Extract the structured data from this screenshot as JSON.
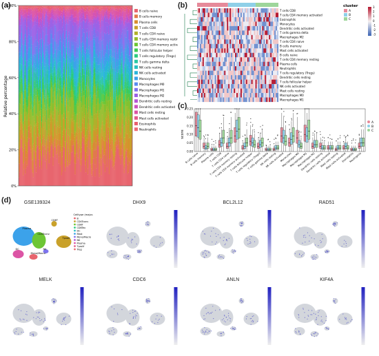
{
  "panels": {
    "a": {
      "letter": "(a)",
      "ylabel": "Relative percentage",
      "yticks": [
        "0%",
        "20%",
        "40%",
        "60%",
        "80%",
        "100%"
      ],
      "legend": [
        {
          "label": "B cells naive",
          "color": "#e8656e"
        },
        {
          "label": "B cells memory",
          "color": "#e47a4a"
        },
        {
          "label": "Plasma cells",
          "color": "#d98e2d"
        },
        {
          "label": "T cells CD8",
          "color": "#c9a12a"
        },
        {
          "label": "T cells CD4 naive",
          "color": "#b2b12a"
        },
        {
          "label": "T cells CD4 memory resting",
          "color": "#96be2e"
        },
        {
          "label": "T cells CD4 memory activated",
          "color": "#6dc634"
        },
        {
          "label": "T cells follicular helper",
          "color": "#3fcb55"
        },
        {
          "label": "T cells regulatory (Tregs)",
          "color": "#2ccb7e"
        },
        {
          "label": "T cells gamma delta",
          "color": "#2bc8a4"
        },
        {
          "label": "NK cells resting",
          "color": "#2bc1c3"
        },
        {
          "label": "NK cells activated",
          "color": "#2bb5db"
        },
        {
          "label": "Monocytes",
          "color": "#3ca2ea"
        },
        {
          "label": "Macrophages M0",
          "color": "#5a8bf0"
        },
        {
          "label": "Macrophages M1",
          "color": "#7d74ef"
        },
        {
          "label": "Macrophages M2",
          "color": "#9c62e6"
        },
        {
          "label": "Dendritic cells resting",
          "color": "#b656d6"
        },
        {
          "label": "Dendritic cells activated",
          "color": "#cc52c0"
        },
        {
          "label": "Mast cells resting",
          "color": "#dc55a5"
        },
        {
          "label": "Mast cells activated",
          "color": "#e45c8a"
        },
        {
          "label": "Eosinophils",
          "color": "#e8606f"
        },
        {
          "label": "Neutrophils",
          "color": "#ec6a74"
        }
      ]
    },
    "b": {
      "letter": "(b)",
      "legend_title": "cluster",
      "clusters": [
        {
          "label": "A",
          "color": "#e68a9a"
        },
        {
          "label": "B",
          "color": "#8fd0e8"
        },
        {
          "label": "C",
          "color": "#9ed69b"
        }
      ],
      "colorbar_ticks": [
        "3",
        "2",
        "1",
        "0",
        "-1",
        "-2",
        "-3"
      ],
      "rows": [
        "T cells CD8",
        "T cells CD4 memory activated",
        "Eosinophils",
        "Monocytes",
        "Dendritic cells activated",
        "T cells gamma delta",
        "Macrophages M2",
        "T cells CD4 naive",
        "B cells memory",
        "Mast cells activated",
        "B cells naive",
        "T cells CD4 memory resting",
        "Plasma cells",
        "Neutrophils",
        "T cells regulatory (Tregs)",
        "Dendritic cells resting",
        "T cells follicular helper",
        "NK cells activated",
        "Mast cells resting",
        "Macrophages M0",
        "Macrophages M1"
      ]
    },
    "c": {
      "letter": "(c)",
      "ylabel": "score",
      "yticks": [
        "0.00",
        "0.05",
        "0.10",
        "0.15",
        "0.20",
        "0.25"
      ],
      "legend": [
        {
          "label": "A",
          "color": "#e68a9a"
        },
        {
          "label": "B",
          "color": "#8fd0e8"
        },
        {
          "label": "C",
          "color": "#9ed69b"
        }
      ],
      "categories": [
        "B cells naive",
        "B cells memory",
        "Plasma cells",
        "T cells CD8",
        "T cells CD4 naive",
        "T cells CD4 memory resting",
        "T cells CD4 memory activated",
        "T cells follicular helper",
        "T cells regulatory (Tregs)",
        "T cells gamma delta",
        "NK cells resting",
        "NK cells activated",
        "Monocytes",
        "Macrophages M0",
        "Macrophages M1",
        "Macrophages M2",
        "Dendritic cells resting",
        "Dendritic cells activated",
        "Mast cells resting",
        "Mast cells activated",
        "Eosinophils",
        "Neutrophils"
      ],
      "medians": [
        [
          0.15,
          0.14,
          0.12
        ],
        [
          0.03,
          0.02,
          0.03
        ],
        [
          0.01,
          0.01,
          0.01
        ],
        [
          0.04,
          0.05,
          0.08
        ],
        [
          0.03,
          0.05,
          0.08
        ],
        [
          0.09,
          0.12,
          0.13
        ],
        [
          0.02,
          0.03,
          0.05
        ],
        [
          0.06,
          0.05,
          0.04
        ],
        [
          0.03,
          0.04,
          0.05
        ],
        [
          0.01,
          0.01,
          0.01
        ],
        [
          0.01,
          0.02,
          0.02
        ],
        [
          0.09,
          0.08,
          0.06
        ],
        [
          0.05,
          0.07,
          0.09
        ],
        [
          0.08,
          0.04,
          0.03
        ],
        [
          0.1,
          0.09,
          0.12
        ],
        [
          0.03,
          0.04,
          0.04
        ],
        [
          0.03,
          0.02,
          0.02
        ],
        [
          0.02,
          0.02,
          0.02
        ],
        [
          0.01,
          0.02,
          0.02
        ],
        [
          0.02,
          0.03,
          0.02
        ],
        [
          0.01,
          0.01,
          0.01
        ],
        [
          0.03,
          0.05,
          0.05
        ]
      ]
    },
    "d": {
      "letter": "(d)",
      "dataset": "GSE139324",
      "celltype_legend_title": "Celltype (major-lineage)",
      "celltypes": [
        {
          "label": "B",
          "color": "#e8656e"
        },
        {
          "label": "CD4Tconv",
          "color": "#c9a12a"
        },
        {
          "label": "CD8T",
          "color": "#6dc634"
        },
        {
          "label": "CD8Tex",
          "color": "#2ccb7e"
        },
        {
          "label": "DC",
          "color": "#2bc1c3"
        },
        {
          "label": "Mast",
          "color": "#3ca2ea"
        },
        {
          "label": "Mono/Macro",
          "color": "#7d74ef"
        },
        {
          "label": "NK",
          "color": "#b656d6"
        },
        {
          "label": "Plasma",
          "color": "#dc55a5"
        },
        {
          "label": "Tprolif",
          "color": "#e45c8a"
        },
        {
          "label": "Treg",
          "color": "#ec6a74"
        }
      ],
      "umap_labels": [
        "Plasma",
        "CD4Tconv",
        "CD8T",
        "Tprolif",
        "DC",
        "Mono/Macro",
        "NK",
        "B"
      ],
      "genes": [
        "DHX9",
        "BCL2L12",
        "RAD51",
        "MELK",
        "CDC6",
        "ANLN",
        "KIF4A"
      ]
    }
  }
}
